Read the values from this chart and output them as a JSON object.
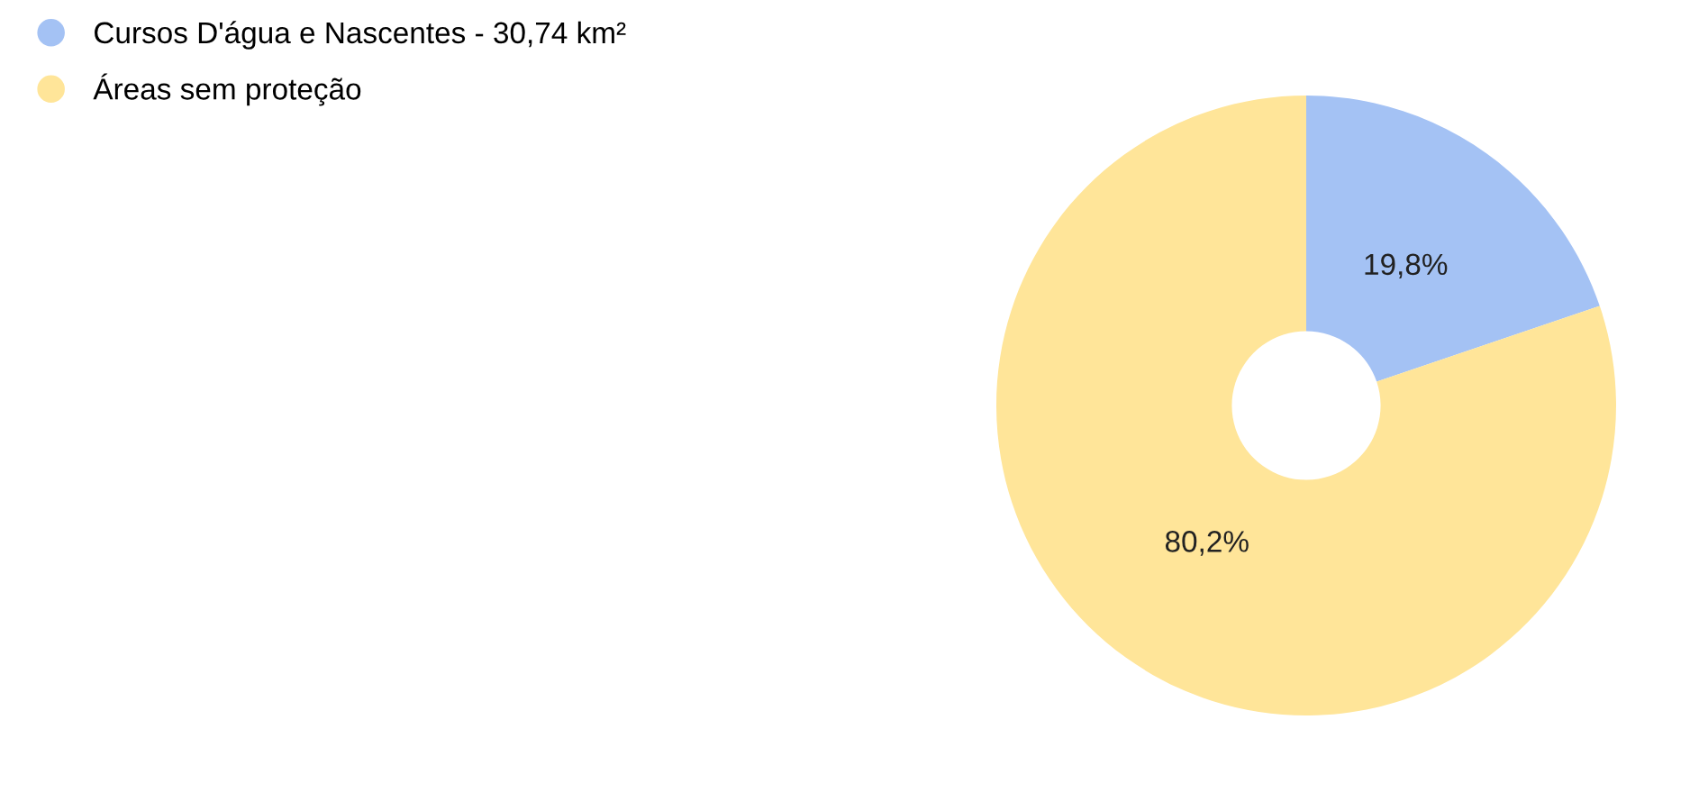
{
  "chart_data": {
    "type": "donut",
    "categories": [
      "Cursos D'água e Nascentes - 30,74 km²",
      "Áreas sem proteção"
    ],
    "values": [
      19.8,
      80.2
    ],
    "colors": [
      "#a4c2f4",
      "#ffe599"
    ],
    "value_labels": [
      "19,8%",
      "80,2%"
    ],
    "legend": "top left"
  }
}
